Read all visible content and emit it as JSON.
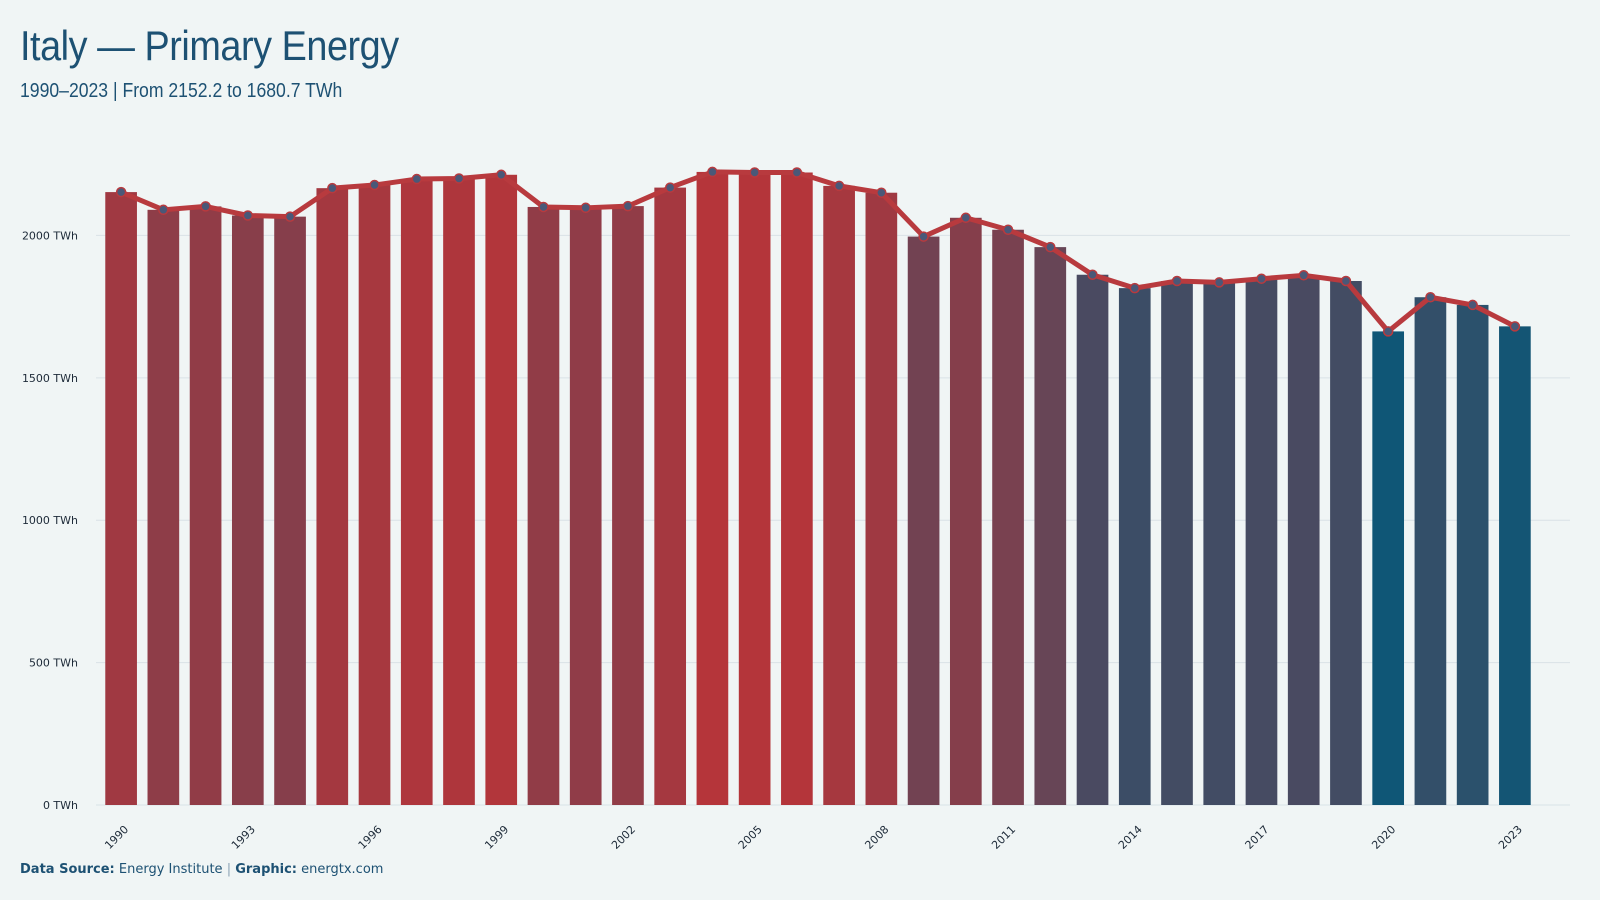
{
  "header": {
    "title": "Italy — Primary Energy",
    "subtitle": "1990–2023 | From 2152.2 to 1680.7  TWh"
  },
  "footer": {
    "source_label": "Data Source:",
    "source_value": "Energy Institute",
    "separator": "|",
    "graphic_label": "Graphic:",
    "graphic_value": "energtx.com"
  },
  "colors": {
    "high": "#b5353a",
    "low": "#0f5676",
    "line": "#b83a3e",
    "marker": "#4a5878",
    "grid": "#d9e2e6"
  },
  "chart_data": {
    "type": "bar",
    "title": "Italy — Primary Energy",
    "subtitle": "1990–2023 | From 2152.2 to 1680.7  TWh",
    "unit": "TWh",
    "x": [
      1990,
      1991,
      1992,
      1993,
      1994,
      1995,
      1996,
      1997,
      1998,
      1999,
      2000,
      2001,
      2002,
      2003,
      2004,
      2005,
      2006,
      2007,
      2008,
      2009,
      2010,
      2011,
      2012,
      2013,
      2014,
      2015,
      2016,
      2017,
      2018,
      2019,
      2020,
      2021,
      2022,
      2023
    ],
    "values": [
      2152.2,
      2090,
      2102,
      2070,
      2066,
      2166,
      2177,
      2198,
      2200,
      2213,
      2100,
      2097,
      2103,
      2168,
      2223,
      2221,
      2221,
      2174,
      2150,
      1996,
      2062,
      2020,
      1959,
      1862,
      1815,
      1840,
      1835,
      1848,
      1860,
      1840,
      1663,
      1783,
      1756,
      1680.7
    ],
    "y_ticks": [
      0,
      500,
      1000,
      1500,
      2000
    ],
    "y_tick_labels": [
      "0 TWh",
      "500 TWh",
      "1000 TWh",
      "1500 TWh",
      "2000 TWh"
    ],
    "x_tick_labels": [
      "1990",
      "1993",
      "1996",
      "1999",
      "2002",
      "2005",
      "2008",
      "2011",
      "2014",
      "2017",
      "2020",
      "2023"
    ],
    "ylim": [
      0,
      2300
    ],
    "grid": true,
    "overlay": "line with markers"
  }
}
